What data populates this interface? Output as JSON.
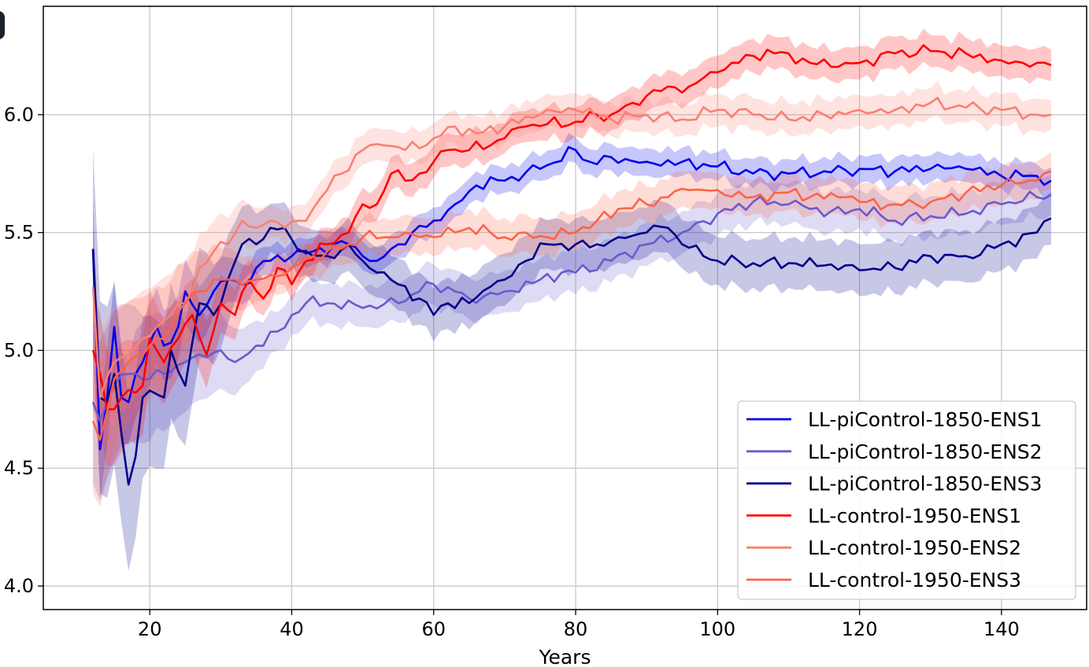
{
  "chart_data": {
    "type": "line",
    "title": "",
    "xlabel": "Years",
    "ylabel": "",
    "xlim": [
      5,
      152
    ],
    "ylim": [
      3.9,
      6.46
    ],
    "xticks": [
      20,
      40,
      60,
      80,
      100,
      120,
      140
    ],
    "yticks": [
      4.0,
      4.5,
      5.0,
      5.5,
      6.0
    ],
    "ytick_labels": [
      "4.0",
      "4.5",
      "5.0",
      "5.5",
      "6.0"
    ],
    "grid": true,
    "legend_position": "lower-right",
    "band_half_width_note_free": true,
    "series": [
      {
        "name": "LL-piControl-1850-ENS1",
        "color": "#0000ee",
        "knots": [
          [
            12,
            5.43
          ],
          [
            13,
            4.58
          ],
          [
            14,
            4.8
          ],
          [
            15,
            5.1
          ],
          [
            16,
            4.8
          ],
          [
            17,
            4.78
          ],
          [
            18,
            4.9
          ],
          [
            19,
            4.95
          ],
          [
            20,
            5.03
          ],
          [
            21,
            5.1
          ],
          [
            22,
            5.02
          ],
          [
            24,
            5.1
          ],
          [
            25,
            5.25
          ],
          [
            27,
            5.15
          ],
          [
            29,
            5.25
          ],
          [
            31,
            5.3
          ],
          [
            33,
            5.28
          ],
          [
            35,
            5.35
          ],
          [
            37,
            5.38
          ],
          [
            40,
            5.4
          ],
          [
            43,
            5.42
          ],
          [
            46,
            5.45
          ],
          [
            48,
            5.45
          ],
          [
            50,
            5.4
          ],
          [
            52,
            5.38
          ],
          [
            55,
            5.45
          ],
          [
            57,
            5.5
          ],
          [
            60,
            5.55
          ],
          [
            63,
            5.62
          ],
          [
            66,
            5.7
          ],
          [
            70,
            5.72
          ],
          [
            75,
            5.77
          ],
          [
            80,
            5.85
          ],
          [
            82,
            5.8
          ],
          [
            85,
            5.82
          ],
          [
            90,
            5.8
          ],
          [
            95,
            5.8
          ],
          [
            100,
            5.78
          ],
          [
            105,
            5.75
          ],
          [
            110,
            5.75
          ],
          [
            115,
            5.76
          ],
          [
            120,
            5.77
          ],
          [
            125,
            5.76
          ],
          [
            130,
            5.77
          ],
          [
            135,
            5.77
          ],
          [
            140,
            5.74
          ],
          [
            145,
            5.74
          ],
          [
            147,
            5.72
          ]
        ],
        "band": 0.05
      },
      {
        "name": "LL-piControl-1850-ENS2",
        "color": "#6a5acd",
        "knots": [
          [
            12,
            4.78
          ],
          [
            13,
            4.7
          ],
          [
            14,
            4.78
          ],
          [
            15,
            4.85
          ],
          [
            17,
            4.9
          ],
          [
            20,
            4.88
          ],
          [
            22,
            4.9
          ],
          [
            25,
            4.95
          ],
          [
            28,
            4.97
          ],
          [
            30,
            5.0
          ],
          [
            32,
            4.95
          ],
          [
            35,
            5.02
          ],
          [
            38,
            5.08
          ],
          [
            40,
            5.15
          ],
          [
            42,
            5.2
          ],
          [
            45,
            5.2
          ],
          [
            50,
            5.18
          ],
          [
            55,
            5.2
          ],
          [
            58,
            5.25
          ],
          [
            60,
            5.28
          ],
          [
            63,
            5.25
          ],
          [
            65,
            5.22
          ],
          [
            70,
            5.25
          ],
          [
            75,
            5.3
          ],
          [
            78,
            5.33
          ],
          [
            80,
            5.33
          ],
          [
            85,
            5.38
          ],
          [
            90,
            5.45
          ],
          [
            95,
            5.5
          ],
          [
            100,
            5.58
          ],
          [
            105,
            5.63
          ],
          [
            110,
            5.62
          ],
          [
            113,
            5.6
          ],
          [
            118,
            5.58
          ],
          [
            120,
            5.6
          ],
          [
            125,
            5.55
          ],
          [
            130,
            5.57
          ],
          [
            135,
            5.58
          ],
          [
            140,
            5.62
          ],
          [
            145,
            5.65
          ],
          [
            147,
            5.66
          ]
        ],
        "band": 0.08
      },
      {
        "name": "LL-piControl-1850-ENS3",
        "color": "#00008b",
        "knots": [
          [
            12,
            5.43
          ],
          [
            13,
            4.8
          ],
          [
            14,
            4.78
          ],
          [
            15,
            4.9
          ],
          [
            16,
            4.65
          ],
          [
            17,
            4.43
          ],
          [
            18,
            4.55
          ],
          [
            19,
            4.8
          ],
          [
            20,
            4.83
          ],
          [
            22,
            4.8
          ],
          [
            23,
            5.0
          ],
          [
            25,
            4.85
          ],
          [
            27,
            5.2
          ],
          [
            29,
            5.15
          ],
          [
            31,
            5.3
          ],
          [
            33,
            5.45
          ],
          [
            35,
            5.45
          ],
          [
            37,
            5.52
          ],
          [
            39,
            5.52
          ],
          [
            41,
            5.42
          ],
          [
            43,
            5.4
          ],
          [
            45,
            5.4
          ],
          [
            48,
            5.45
          ],
          [
            50,
            5.38
          ],
          [
            52,
            5.33
          ],
          [
            55,
            5.28
          ],
          [
            58,
            5.22
          ],
          [
            60,
            5.15
          ],
          [
            62,
            5.2
          ],
          [
            65,
            5.2
          ],
          [
            68,
            5.27
          ],
          [
            70,
            5.3
          ],
          [
            73,
            5.38
          ],
          [
            76,
            5.45
          ],
          [
            80,
            5.45
          ],
          [
            83,
            5.45
          ],
          [
            86,
            5.48
          ],
          [
            90,
            5.5
          ],
          [
            93,
            5.52
          ],
          [
            95,
            5.45
          ],
          [
            98,
            5.4
          ],
          [
            100,
            5.38
          ],
          [
            105,
            5.37
          ],
          [
            110,
            5.37
          ],
          [
            115,
            5.36
          ],
          [
            120,
            5.34
          ],
          [
            125,
            5.35
          ],
          [
            130,
            5.4
          ],
          [
            135,
            5.4
          ],
          [
            140,
            5.45
          ],
          [
            145,
            5.5
          ],
          [
            147,
            5.56
          ]
        ],
        "band": 0.1
      },
      {
        "name": "LL-control-1950-ENS1",
        "color": "#ff0000",
        "knots": [
          [
            12,
            5.0
          ],
          [
            13,
            4.9
          ],
          [
            14,
            4.75
          ],
          [
            15,
            4.75
          ],
          [
            16,
            4.8
          ],
          [
            18,
            4.82
          ],
          [
            19,
            4.85
          ],
          [
            20,
            5.05
          ],
          [
            21,
            5.0
          ],
          [
            22,
            4.95
          ],
          [
            24,
            5.05
          ],
          [
            26,
            5.15
          ],
          [
            28,
            4.98
          ],
          [
            30,
            5.2
          ],
          [
            32,
            5.15
          ],
          [
            34,
            5.3
          ],
          [
            36,
            5.22
          ],
          [
            38,
            5.35
          ],
          [
            40,
            5.28
          ],
          [
            42,
            5.38
          ],
          [
            45,
            5.45
          ],
          [
            48,
            5.5
          ],
          [
            50,
            5.62
          ],
          [
            52,
            5.62
          ],
          [
            54,
            5.75
          ],
          [
            56,
            5.72
          ],
          [
            58,
            5.75
          ],
          [
            60,
            5.8
          ],
          [
            62,
            5.85
          ],
          [
            65,
            5.85
          ],
          [
            68,
            5.87
          ],
          [
            70,
            5.9
          ],
          [
            73,
            5.95
          ],
          [
            76,
            5.96
          ],
          [
            80,
            5.97
          ],
          [
            83,
            6.0
          ],
          [
            85,
            6.0
          ],
          [
            88,
            6.05
          ],
          [
            90,
            6.08
          ],
          [
            93,
            6.12
          ],
          [
            96,
            6.12
          ],
          [
            100,
            6.18
          ],
          [
            103,
            6.22
          ],
          [
            105,
            6.25
          ],
          [
            108,
            6.26
          ],
          [
            110,
            6.26
          ],
          [
            113,
            6.22
          ],
          [
            118,
            6.22
          ],
          [
            120,
            6.22
          ],
          [
            125,
            6.26
          ],
          [
            130,
            6.27
          ],
          [
            135,
            6.26
          ],
          [
            140,
            6.23
          ],
          [
            145,
            6.22
          ],
          [
            147,
            6.21
          ]
        ],
        "band": 0.06
      },
      {
        "name": "LL-control-1950-ENS2",
        "color": "#fa8072",
        "knots": [
          [
            12,
            5.27
          ],
          [
            13,
            4.8
          ],
          [
            15,
            4.95
          ],
          [
            17,
            4.98
          ],
          [
            19,
            5.05
          ],
          [
            21,
            5.1
          ],
          [
            23,
            5.15
          ],
          [
            25,
            5.2
          ],
          [
            27,
            5.35
          ],
          [
            29,
            5.42
          ],
          [
            31,
            5.45
          ],
          [
            33,
            5.55
          ],
          [
            35,
            5.52
          ],
          [
            37,
            5.55
          ],
          [
            39,
            5.52
          ],
          [
            41,
            5.55
          ],
          [
            43,
            5.6
          ],
          [
            45,
            5.68
          ],
          [
            47,
            5.75
          ],
          [
            50,
            5.85
          ],
          [
            53,
            5.87
          ],
          [
            56,
            5.85
          ],
          [
            60,
            5.9
          ],
          [
            63,
            5.95
          ],
          [
            66,
            5.92
          ],
          [
            70,
            5.95
          ],
          [
            75,
            6.0
          ],
          [
            80,
            6.02
          ],
          [
            85,
            5.98
          ],
          [
            90,
            6.0
          ],
          [
            95,
            5.98
          ],
          [
            100,
            6.02
          ],
          [
            105,
            6.0
          ],
          [
            110,
            5.98
          ],
          [
            115,
            6.0
          ],
          [
            120,
            6.02
          ],
          [
            125,
            6.02
          ],
          [
            130,
            6.05
          ],
          [
            135,
            6.03
          ],
          [
            140,
            6.02
          ],
          [
            145,
            6.0
          ],
          [
            147,
            6.0
          ]
        ],
        "band": 0.06
      },
      {
        "name": "LL-control-1950-ENS3",
        "color": "#ff6347",
        "knots": [
          [
            12,
            4.7
          ],
          [
            13,
            4.62
          ],
          [
            15,
            4.88
          ],
          [
            17,
            4.95
          ],
          [
            19,
            4.98
          ],
          [
            21,
            5.05
          ],
          [
            23,
            5.1
          ],
          [
            25,
            5.2
          ],
          [
            27,
            5.25
          ],
          [
            29,
            5.3
          ],
          [
            31,
            5.3
          ],
          [
            33,
            5.28
          ],
          [
            35,
            5.3
          ],
          [
            37,
            5.32
          ],
          [
            40,
            5.35
          ],
          [
            43,
            5.4
          ],
          [
            45,
            5.42
          ],
          [
            48,
            5.45
          ],
          [
            50,
            5.48
          ],
          [
            53,
            5.48
          ],
          [
            55,
            5.48
          ],
          [
            58,
            5.48
          ],
          [
            60,
            5.48
          ],
          [
            63,
            5.5
          ],
          [
            65,
            5.52
          ],
          [
            68,
            5.5
          ],
          [
            70,
            5.48
          ],
          [
            73,
            5.5
          ],
          [
            76,
            5.48
          ],
          [
            80,
            5.5
          ],
          [
            83,
            5.55
          ],
          [
            86,
            5.6
          ],
          [
            90,
            5.62
          ],
          [
            93,
            5.65
          ],
          [
            96,
            5.68
          ],
          [
            100,
            5.68
          ],
          [
            105,
            5.65
          ],
          [
            110,
            5.67
          ],
          [
            113,
            5.65
          ],
          [
            118,
            5.65
          ],
          [
            120,
            5.63
          ],
          [
            125,
            5.62
          ],
          [
            130,
            5.63
          ],
          [
            135,
            5.67
          ],
          [
            140,
            5.7
          ],
          [
            145,
            5.72
          ],
          [
            147,
            5.76
          ]
        ],
        "band": 0.07
      }
    ]
  }
}
